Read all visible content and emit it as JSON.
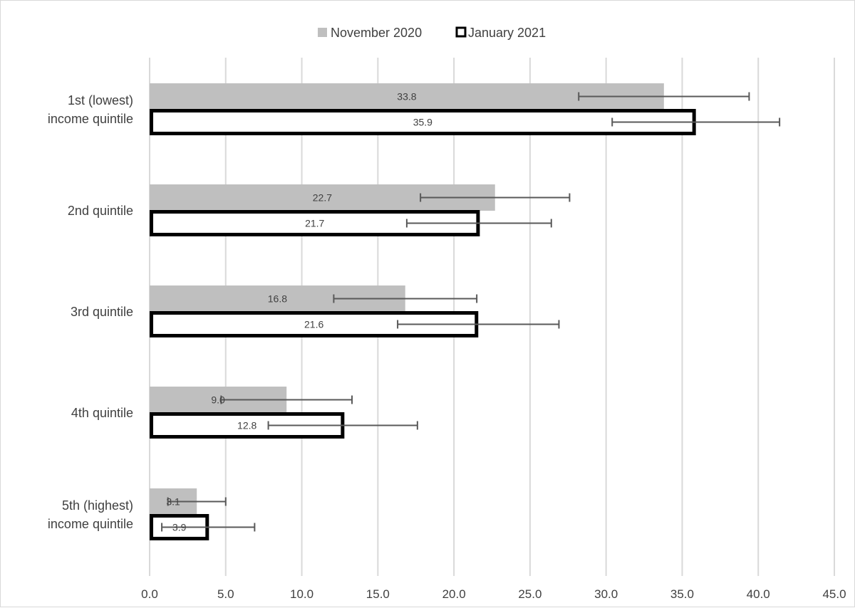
{
  "chart_data": {
    "type": "bar",
    "orientation": "horizontal",
    "title": "",
    "xlabel": "",
    "ylabel": "",
    "xlim": [
      0,
      45
    ],
    "x_ticks": [
      0,
      5,
      10,
      15,
      20,
      25,
      30,
      35,
      40,
      45
    ],
    "x_tick_labels": [
      "0.0",
      "5.0",
      "10.0",
      "15.0",
      "20.0",
      "25.0",
      "30.0",
      "35.0",
      "40.0",
      "45.0"
    ],
    "grid": "vertical",
    "legend_position": "top",
    "categories": [
      [
        "1st (lowest)",
        "income quintile"
      ],
      [
        "2nd quintile"
      ],
      [
        "3rd quintile"
      ],
      [
        "4th quintile"
      ],
      [
        "5th (highest)",
        "income quintile"
      ]
    ],
    "series": [
      {
        "name": "November 2020",
        "style": "filled",
        "color": "#bfbfbf",
        "values": [
          33.8,
          22.7,
          16.8,
          9.0,
          3.1
        ],
        "labels": [
          "33.8",
          "22.7",
          "16.8",
          "9.0",
          "3.1"
        ],
        "error_low": [
          28.2,
          17.8,
          12.1,
          4.7,
          1.2
        ],
        "error_high": [
          39.4,
          27.6,
          21.5,
          13.3,
          5.0
        ]
      },
      {
        "name": "January 2021",
        "style": "outlined",
        "color": "#000000",
        "values": [
          35.9,
          21.7,
          21.6,
          12.8,
          3.9
        ],
        "labels": [
          "35.9",
          "21.7",
          "21.6",
          "12.8",
          "3.9"
        ],
        "error_low": [
          30.4,
          16.9,
          16.3,
          7.8,
          0.8
        ],
        "error_high": [
          41.4,
          26.4,
          26.9,
          17.6,
          6.9
        ]
      }
    ]
  }
}
